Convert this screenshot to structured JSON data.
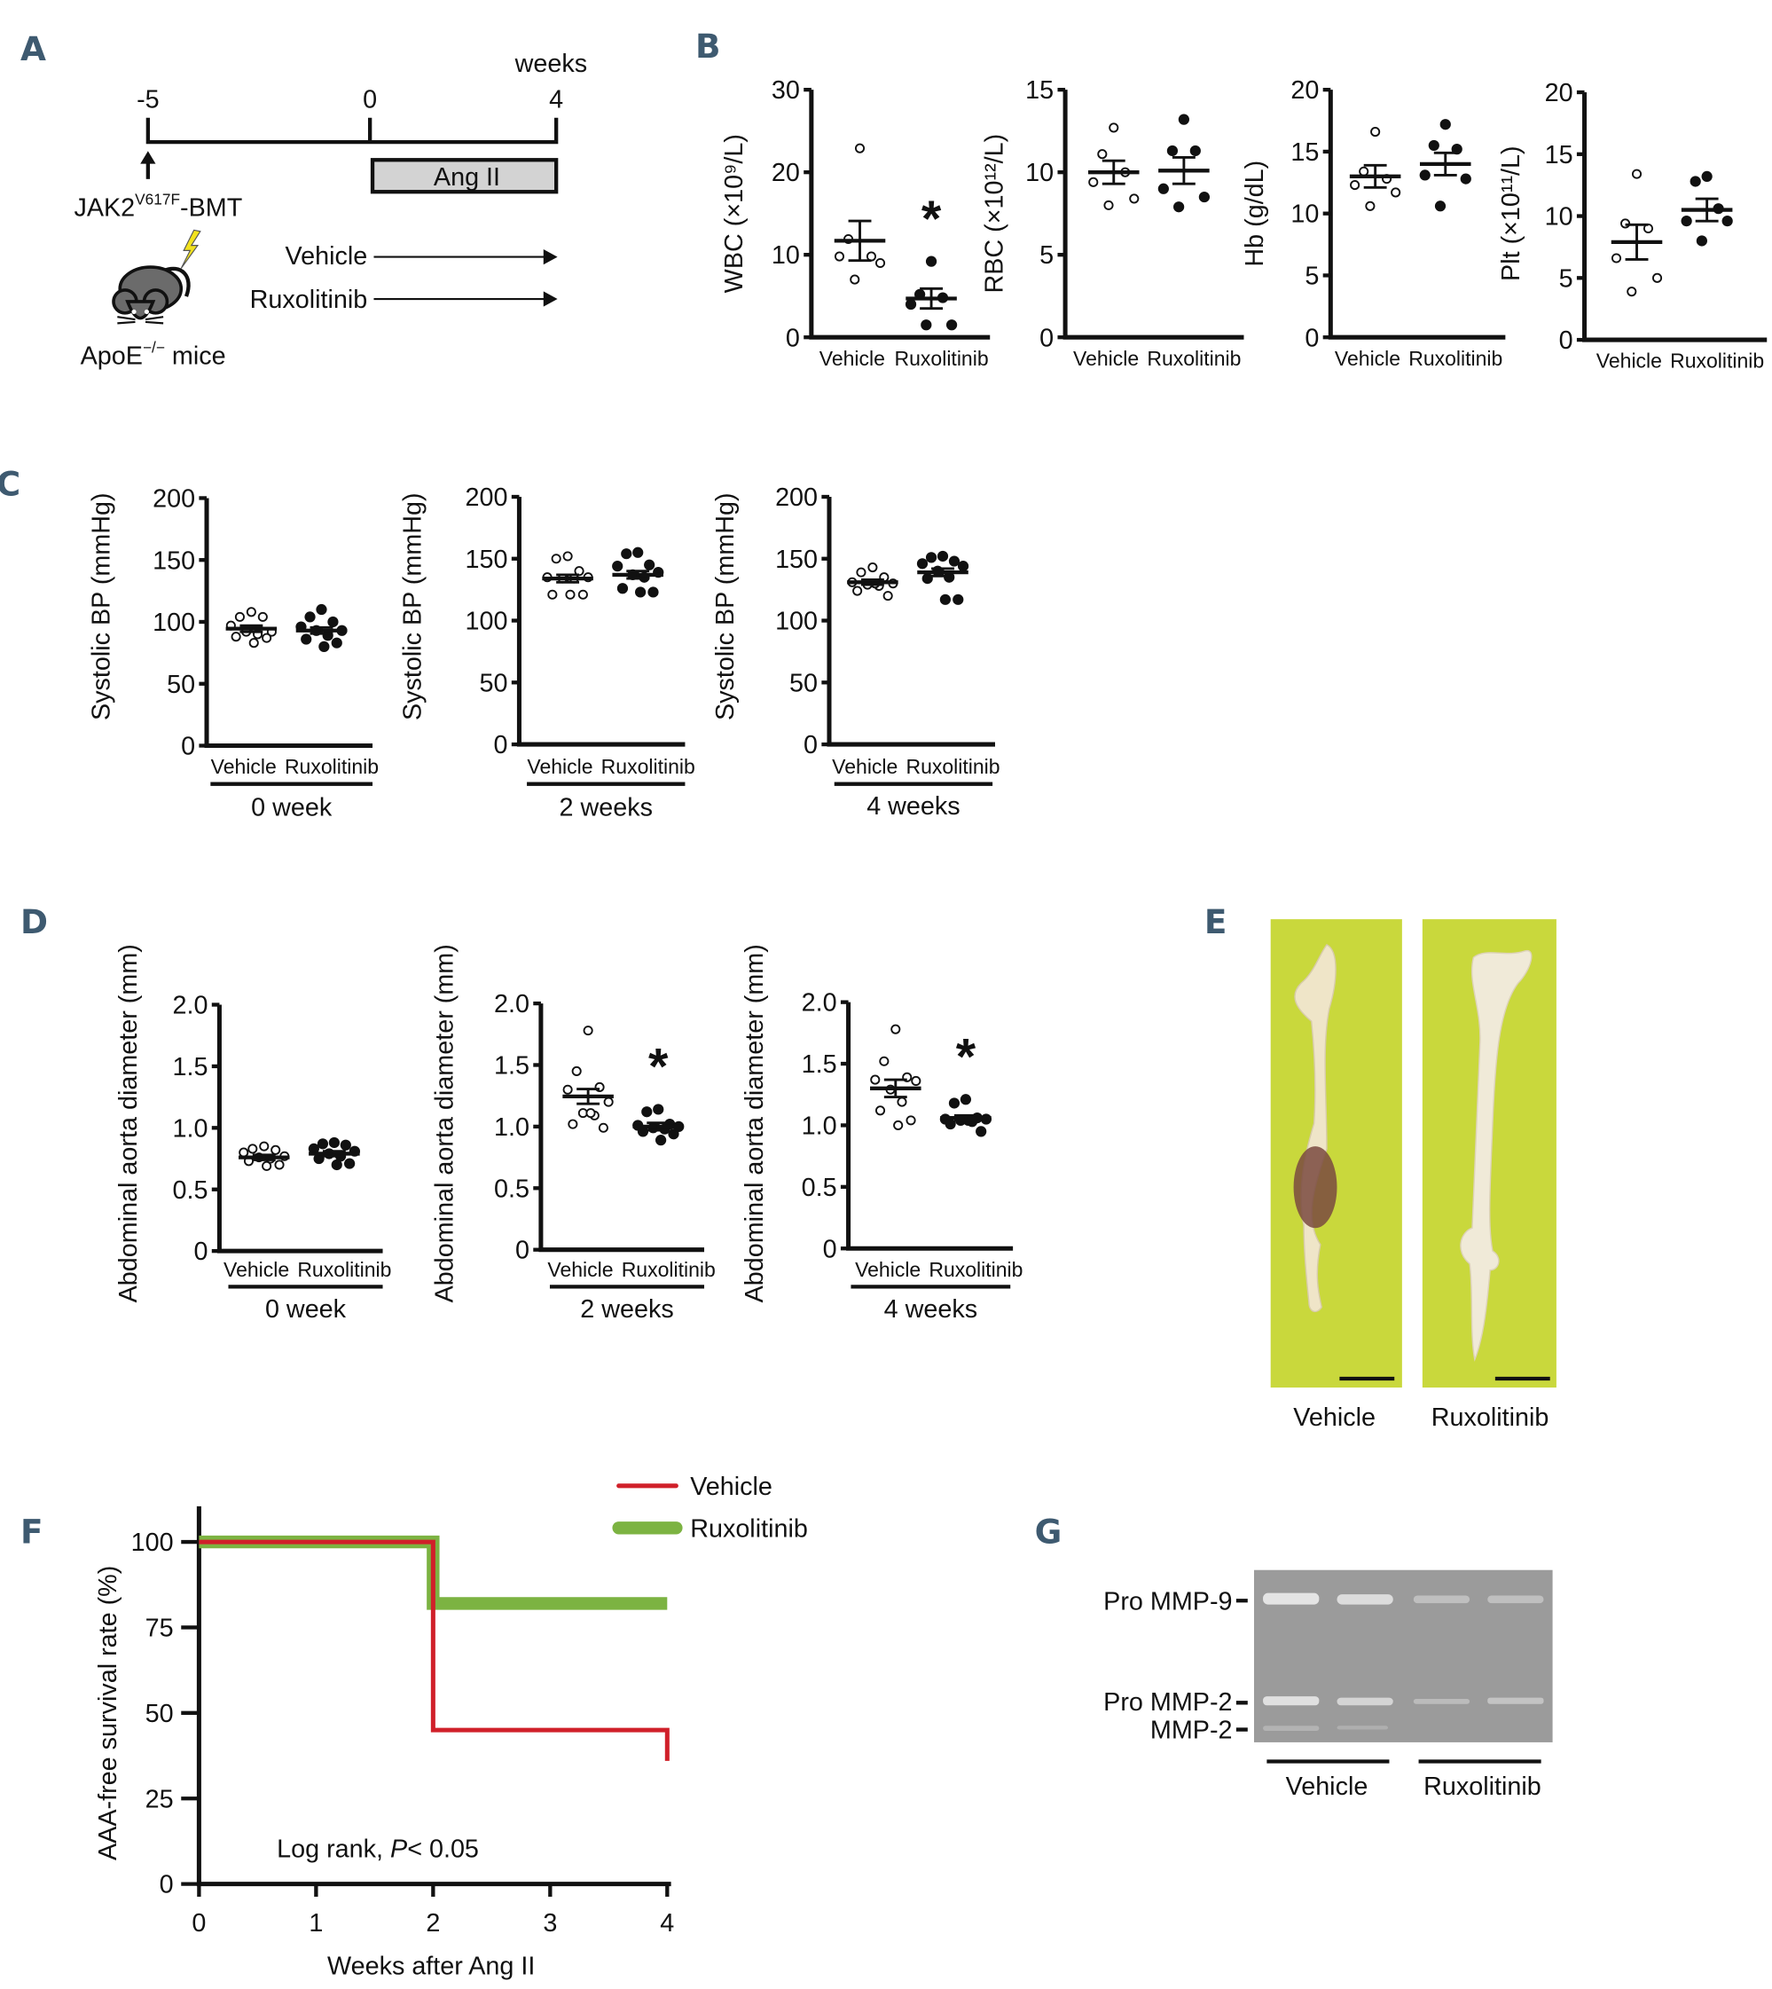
{
  "panel_labels": {
    "a": "A",
    "b": "B",
    "c": "C",
    "d": "D",
    "e": "E",
    "f": "F",
    "g": "G"
  },
  "colors": {
    "panel_label": "#3e5a70",
    "vehicle_line": "#d0202a",
    "ruxolitinib_line": "#7cb342",
    "photo_background": "#c9d83c",
    "gel": "#9b9b9b",
    "ang_box": "#d3d3d3",
    "bolt": "#f2e21e"
  },
  "panel_a": {
    "unit": "weeks",
    "timepoints": [
      "-5",
      "0",
      "4"
    ],
    "ang_label": "Ang II",
    "jak2": "JAK2",
    "jak2_sup": "V617F",
    "jak2_suffix": "-BMT",
    "apoe": "ApoE",
    "apoe_sup": "−/−",
    "apoe_suffix": " mice",
    "arms": [
      "Vehicle",
      "Ruxolitinib"
    ],
    "icons": [
      "mouse-icon",
      "lightning-icon",
      "arrow-up-icon",
      "arrow-right-icon"
    ]
  },
  "chart_data": [
    {
      "panel": "B",
      "type": "scatter",
      "ylabel": "WBC (×10⁹/L)",
      "ylim": [
        0,
        30
      ],
      "yticks": [
        0,
        10,
        20,
        30
      ],
      "categories": [
        "Vehicle",
        "Ruxolitinib"
      ],
      "series": [
        {
          "name": "Vehicle",
          "values": [
            22.9,
            11.9,
            9.8,
            9.8,
            9.0,
            7.0
          ],
          "mean": 11.7,
          "sem": 2.4
        },
        {
          "name": "Ruxolitinib",
          "values": [
            9.2,
            5.2,
            4.8,
            4.0,
            1.5,
            1.5
          ],
          "mean": 4.7,
          "sem": 1.2,
          "significance": "*"
        }
      ]
    },
    {
      "panel": "B",
      "type": "scatter",
      "ylabel": "RBC (×10¹²/L)",
      "ylim": [
        0,
        15
      ],
      "yticks": [
        0,
        5,
        10,
        15
      ],
      "categories": [
        "Vehicle",
        "Ruxolitinib"
      ],
      "series": [
        {
          "name": "Vehicle",
          "values": [
            12.7,
            11.1,
            10.0,
            9.4,
            8.4,
            8.0
          ],
          "mean": 10.0,
          "sem": 0.7
        },
        {
          "name": "Ruxolitinib",
          "values": [
            13.2,
            11.3,
            11.3,
            9.0,
            8.5,
            7.9
          ],
          "mean": 10.1,
          "sem": 0.8
        }
      ]
    },
    {
      "panel": "B",
      "type": "scatter",
      "ylabel": "Hb (g/dL)",
      "ylim": [
        0,
        20
      ],
      "yticks": [
        0,
        5,
        10,
        15,
        20
      ],
      "categories": [
        "Vehicle",
        "Ruxolitinib"
      ],
      "series": [
        {
          "name": "Vehicle",
          "values": [
            16.6,
            13.4,
            12.8,
            12.3,
            11.7,
            10.6
          ],
          "mean": 13.0,
          "sem": 0.9
        },
        {
          "name": "Ruxolitinib",
          "values": [
            17.2,
            15.5,
            15.2,
            13.1,
            12.8,
            10.6
          ],
          "mean": 14.0,
          "sem": 0.9
        }
      ]
    },
    {
      "panel": "B",
      "type": "scatter",
      "ylabel": "Plt (×10¹¹/L)",
      "ylim": [
        0,
        20
      ],
      "yticks": [
        0,
        5,
        10,
        15,
        20
      ],
      "categories": [
        "Vehicle",
        "Ruxolitinib"
      ],
      "series": [
        {
          "name": "Vehicle",
          "values": [
            13.4,
            9.4,
            9.0,
            6.6,
            5.0,
            3.9
          ],
          "mean": 7.9,
          "sem": 1.4
        },
        {
          "name": "Ruxolitinib",
          "values": [
            13.2,
            12.8,
            10.6,
            9.6,
            9.6,
            8.0
          ],
          "mean": 10.5,
          "sem": 0.9
        }
      ]
    },
    {
      "panel": "C",
      "type": "scatter",
      "ylabel": "Systolic BP (mmHg)",
      "ylim": [
        0,
        200
      ],
      "yticks": [
        0,
        50,
        100,
        150,
        200
      ],
      "categories": [
        "Vehicle",
        "Ruxolitinib"
      ],
      "group_label": "0 week",
      "series": [
        {
          "name": "Vehicle",
          "values": [
            108,
            104,
            104,
            97,
            92,
            92,
            90,
            88,
            87,
            83
          ],
          "mean": 94.5,
          "sem": 2.5
        },
        {
          "name": "Ruxolitinib",
          "values": [
            110,
            104,
            100,
            96,
            93,
            93,
            89,
            86,
            83,
            80
          ],
          "mean": 93,
          "sem": 2.5
        }
      ]
    },
    {
      "panel": "C",
      "type": "scatter",
      "ylabel": "Systolic BP (mmHg)",
      "ylim": [
        0,
        200
      ],
      "yticks": [
        0,
        50,
        100,
        150,
        200
      ],
      "categories": [
        "Vehicle",
        "Ruxolitinib"
      ],
      "group_label": "2 weeks",
      "series": [
        {
          "name": "Vehicle",
          "values": [
            152,
            150,
            140,
            135,
            135,
            134,
            134,
            121,
            121,
            121
          ],
          "mean": 134,
          "sem": 3
        },
        {
          "name": "Ruxolitinib",
          "values": [
            155,
            154,
            145,
            144,
            139,
            137,
            135,
            126,
            123,
            123
          ],
          "mean": 137,
          "sem": 3
        }
      ]
    },
    {
      "panel": "C",
      "type": "scatter",
      "ylabel": "Systolic BP (mmHg)",
      "ylim": [
        0,
        200
      ],
      "yticks": [
        0,
        50,
        100,
        150,
        200
      ],
      "categories": [
        "Vehicle",
        "Ruxolitinib"
      ],
      "group_label": "4 weeks",
      "series": [
        {
          "name": "Vehicle",
          "values": [
            143,
            139,
            135,
            131,
            130,
            129,
            128,
            124,
            120,
            130
          ],
          "mean": 131,
          "sem": 2
        },
        {
          "name": "Ruxolitinib",
          "values": [
            152,
            151,
            148,
            146,
            144,
            140,
            135,
            134,
            117,
            117
          ],
          "mean": 139,
          "sem": 3
        }
      ]
    },
    {
      "panel": "D",
      "type": "scatter",
      "ylabel": "Abdominal aorta diameter (mm)",
      "ylim": [
        0,
        2.0
      ],
      "yticks": [
        "0",
        "0.5",
        "1.0",
        "1.5",
        "2.0"
      ],
      "categories": [
        "Vehicle",
        "Ruxolitinib"
      ],
      "group_label": "0 week",
      "series": [
        {
          "name": "Vehicle",
          "values": [
            0.85,
            0.83,
            0.82,
            0.8,
            0.77,
            0.76,
            0.75,
            0.73,
            0.7,
            0.69
          ],
          "mean": 0.76,
          "sem": 0.02
        },
        {
          "name": "Ruxolitinib",
          "values": [
            0.88,
            0.87,
            0.86,
            0.83,
            0.81,
            0.79,
            0.77,
            0.75,
            0.71,
            0.7
          ],
          "mean": 0.79,
          "sem": 0.02
        }
      ]
    },
    {
      "panel": "D",
      "type": "scatter",
      "ylabel": "Abdominal aorta diameter (mm)",
      "ylim": [
        0,
        2.0
      ],
      "yticks": [
        "0",
        "0.5",
        "1.0",
        "1.5",
        "2.0"
      ],
      "categories": [
        "Vehicle",
        "Ruxolitinib"
      ],
      "group_label": "2 weeks",
      "series": [
        {
          "name": "Vehicle",
          "values": [
            1.78,
            1.45,
            1.32,
            1.3,
            1.2,
            1.11,
            1.09,
            1.02,
            0.99,
            1.11
          ],
          "mean": 1.245,
          "sem": 0.06
        },
        {
          "name": "Ruxolitinib",
          "values": [
            1.14,
            1.12,
            1.02,
            1.01,
            1.0,
            0.99,
            0.98,
            0.96,
            0.94,
            0.89
          ],
          "mean": 1.0,
          "sem": 0.03,
          "significance": "*"
        }
      ]
    },
    {
      "panel": "D",
      "type": "scatter",
      "ylabel": "Abdominal aorta diameter (mm)",
      "ylim": [
        0,
        2.0
      ],
      "yticks": [
        "0",
        "0.5",
        "1.0",
        "1.5",
        "2.0"
      ],
      "categories": [
        "Vehicle",
        "Ruxolitinib"
      ],
      "group_label": "4 weeks",
      "series": [
        {
          "name": "Vehicle",
          "values": [
            1.78,
            1.52,
            1.39,
            1.37,
            1.36,
            1.29,
            1.19,
            1.12,
            1.04,
            1.0
          ],
          "mean": 1.3,
          "sem": 0.07
        },
        {
          "name": "Ruxolitinib",
          "values": [
            1.21,
            1.18,
            1.06,
            1.05,
            1.05,
            1.04,
            1.03,
            1.01,
            0.95,
            1.04
          ],
          "mean": 1.06,
          "sem": 0.02,
          "significance": "*"
        }
      ]
    },
    {
      "panel": "F",
      "type": "line",
      "step": true,
      "xlabel": "Weeks after Ang II",
      "ylabel": "AAA-free survival rate (%)",
      "xlim": [
        0,
        4
      ],
      "ylim": [
        0,
        100
      ],
      "xticks": [
        "0",
        "1",
        "2",
        "3",
        "4"
      ],
      "yticks": [
        "0",
        "25",
        "50",
        "75",
        "100"
      ],
      "legend": "top-right",
      "annotation": {
        "text": "Log rank,",
        "p_label": "P",
        "p_value": "< 0.05"
      },
      "series": [
        {
          "name": "Vehicle",
          "x": [
            0,
            2,
            2,
            4,
            4
          ],
          "y": [
            100,
            100,
            45,
            45,
            36
          ]
        },
        {
          "name": "Ruxolitinib",
          "x": [
            0,
            2,
            2,
            4
          ],
          "y": [
            100,
            100,
            82,
            82
          ]
        }
      ]
    }
  ],
  "panel_e": {
    "labels": [
      "Vehicle",
      "Ruxolitinib"
    ]
  },
  "panel_g": {
    "bands": [
      "Pro MMP-9",
      "Pro MMP-2",
      "MMP-2"
    ],
    "groups": [
      "Vehicle",
      "Ruxolitinib"
    ]
  }
}
